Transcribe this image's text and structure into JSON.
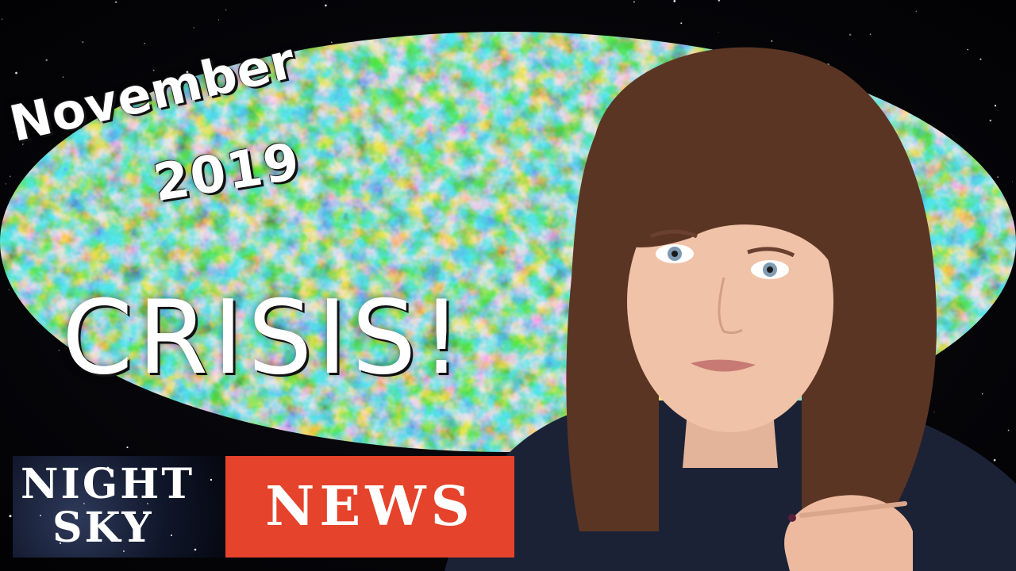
{
  "thumbnail": {
    "title_line_1": "November",
    "title_line_2": "2019",
    "title_line_3": "CRISIS!",
    "brand": {
      "line_1": "Night",
      "line_2": "Sky",
      "tag": "News",
      "tag_color": "#e5432b"
    },
    "icons": [
      "cmb-sky-map",
      "presenter-photo",
      "starfield"
    ]
  }
}
